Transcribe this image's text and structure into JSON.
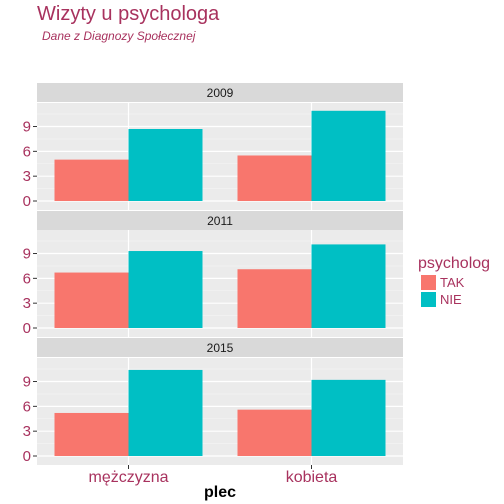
{
  "chart_data": {
    "type": "bar",
    "title": "Wizyty u psychologa",
    "subtitle": "Dane z Diagnozy Społecznej",
    "xlabel": "plec",
    "ylabel": "",
    "categories": [
      "mężczyzna",
      "kobieta"
    ],
    "ylim": [
      0,
      11
    ],
    "yticks": [
      0,
      3,
      6,
      9
    ],
    "grid": true,
    "legend": {
      "title": "psycholog",
      "position": "right",
      "entries": [
        {
          "label": "TAK",
          "color": "#f8766d"
        },
        {
          "label": "NIE",
          "color": "#00bfc4"
        }
      ]
    },
    "panels": [
      {
        "label": "2009",
        "series": [
          {
            "name": "TAK",
            "values": [
              5.0,
              5.5
            ]
          },
          {
            "name": "NIE",
            "values": [
              8.7,
              10.9
            ]
          }
        ]
      },
      {
        "label": "2011",
        "series": [
          {
            "name": "TAK",
            "values": [
              6.7,
              7.1
            ]
          },
          {
            "name": "NIE",
            "values": [
              9.3,
              10.1
            ]
          }
        ]
      },
      {
        "label": "2015",
        "series": [
          {
            "name": "TAK",
            "values": [
              5.2,
              5.6
            ]
          },
          {
            "name": "NIE",
            "values": [
              10.4,
              9.2
            ]
          }
        ]
      }
    ],
    "colors": {
      "panel_bg": "#ebebeb",
      "strip_bg": "#d9d9d9",
      "grid_major": "#ffffff",
      "text_accent": "#a8325e"
    }
  }
}
